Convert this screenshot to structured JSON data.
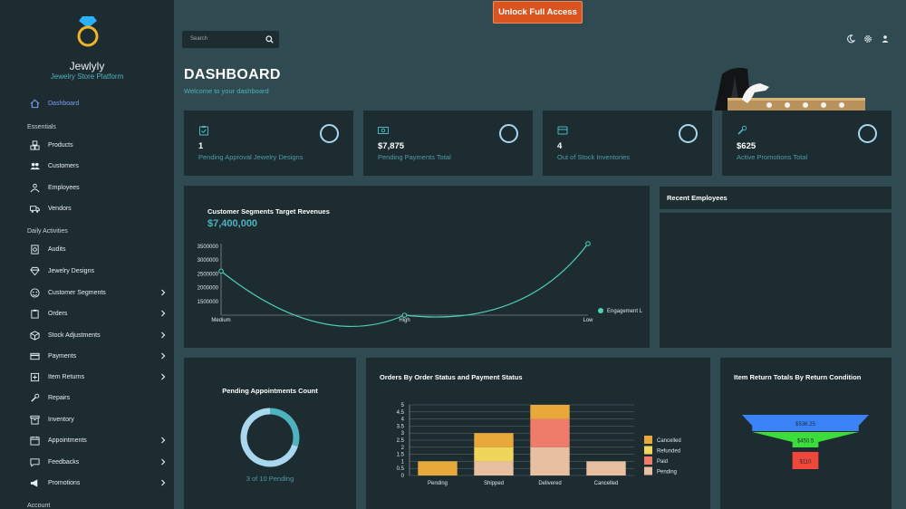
{
  "brand": {
    "name": "Jewlyly",
    "subtitle": "Jewelry Store Platform"
  },
  "sidebar": {
    "items": [
      {
        "label": "Dashboard",
        "active": true,
        "icon": "home-icon"
      },
      {
        "section": "Essentials"
      },
      {
        "label": "Products",
        "icon": "boxes-icon"
      },
      {
        "label": "Customers",
        "icon": "users-icon"
      },
      {
        "label": "Employees",
        "icon": "employees-icon"
      },
      {
        "label": "Vendors",
        "icon": "truck-icon"
      },
      {
        "section": "Daily Activities"
      },
      {
        "label": "Audits",
        "icon": "audit-icon"
      },
      {
        "label": "Jewelry Designs",
        "icon": "diamond-icon"
      },
      {
        "label": "Customer Segments",
        "icon": "segments-icon",
        "expandable": true
      },
      {
        "label": "Orders",
        "icon": "clipboard-icon",
        "expandable": true
      },
      {
        "label": "Stock Adjustments",
        "icon": "adjust-icon",
        "expandable": true
      },
      {
        "label": "Payments",
        "icon": "card-icon",
        "expandable": true
      },
      {
        "label": "Item Returns",
        "icon": "return-icon",
        "expandable": true
      },
      {
        "label": "Repairs",
        "icon": "wrench-icon"
      },
      {
        "label": "Inventory",
        "icon": "archive-icon"
      },
      {
        "label": "Appointments",
        "icon": "calendar-icon",
        "expandable": true
      },
      {
        "label": "Feedbacks",
        "icon": "feedback-icon",
        "expandable": true
      },
      {
        "label": "Promotions",
        "icon": "megaphone-icon",
        "expandable": true
      },
      {
        "section": "Account"
      }
    ]
  },
  "topbar": {
    "search_placeholder": "Search",
    "unlock_label": "Unlock Full Access"
  },
  "header": {
    "title": "DASHBOARD",
    "subtitle": "Welcome to your dashboard"
  },
  "stats": [
    {
      "value": "1",
      "label": "Pending Approval Jewelry Designs",
      "icon": "clipboard-check-icon"
    },
    {
      "value": "$7,875",
      "label": "Pending Payments Total",
      "icon": "money-icon"
    },
    {
      "value": "4",
      "label": "Out of Stock Inventories",
      "icon": "storage-icon"
    },
    {
      "value": "$625",
      "label": "Active Promotions Total",
      "icon": "wrench-icon"
    }
  ],
  "segments_card": {
    "title": "Customer Segments Target Revenues",
    "amount": "$7,400,000"
  },
  "employees_card": {
    "title": "Recent Employees"
  },
  "appointments_card": {
    "title": "Pending Appointments Count",
    "caption": "3 of 10 Pending"
  },
  "orders_card": {
    "title": "Orders By Order Status and Payment Status"
  },
  "returns_card": {
    "title": "Item Return Totals By Return Condition"
  },
  "chart_data": [
    {
      "type": "line",
      "title": "Customer Segments Target Revenues",
      "categories": [
        "Medium",
        "High",
        "Low"
      ],
      "series": [
        {
          "name": "Engagement L",
          "values": [
            2600000,
            1000000,
            3600000
          ]
        }
      ],
      "yticks": [
        "3500000",
        "3000000",
        "2500000",
        "2000000",
        "1500000"
      ],
      "ylim": [
        1000000,
        3600000
      ],
      "legend": "right",
      "color": "#4fd1b8"
    },
    {
      "type": "bar",
      "stacked": true,
      "title": "Orders By Order Status and Payment Status",
      "categories": [
        "Pending",
        "Shipped",
        "Delivered",
        "Cancelled"
      ],
      "series": [
        {
          "name": "Pending",
          "values": [
            0,
            1,
            2,
            1
          ],
          "color": "#e8bfa0"
        },
        {
          "name": "Paid",
          "values": [
            0,
            0,
            2,
            0
          ],
          "color": "#ef7b6b"
        },
        {
          "name": "Refunded",
          "values": [
            0,
            1,
            0,
            0
          ],
          "color": "#efd65a"
        },
        {
          "name": "Cancelled",
          "values": [
            1,
            1,
            1,
            0
          ],
          "color": "#e8a83a"
        }
      ],
      "legend_order": [
        "Cancelled",
        "Refunded",
        "Paid",
        "Pending"
      ],
      "yticks": [
        "0",
        "0.5",
        "1",
        "1.5",
        "2",
        "2.5",
        "3",
        "3.5",
        "4",
        "4.5",
        "5"
      ],
      "ylim": [
        0,
        5
      ]
    },
    {
      "type": "funnel",
      "title": "Item Return Totals By Return Condition",
      "labels": [
        "$536.25",
        "$450.5",
        "$110"
      ],
      "values": [
        536.25,
        450.5,
        110
      ],
      "colors": [
        "#3b82f6",
        "#3ddc3d",
        "#f0473a"
      ]
    },
    {
      "type": "pie",
      "title": "Pending Appointments Count",
      "values": [
        3,
        7
      ],
      "colors": [
        "#4fb3bf",
        "#a9d7ef"
      ]
    }
  ]
}
